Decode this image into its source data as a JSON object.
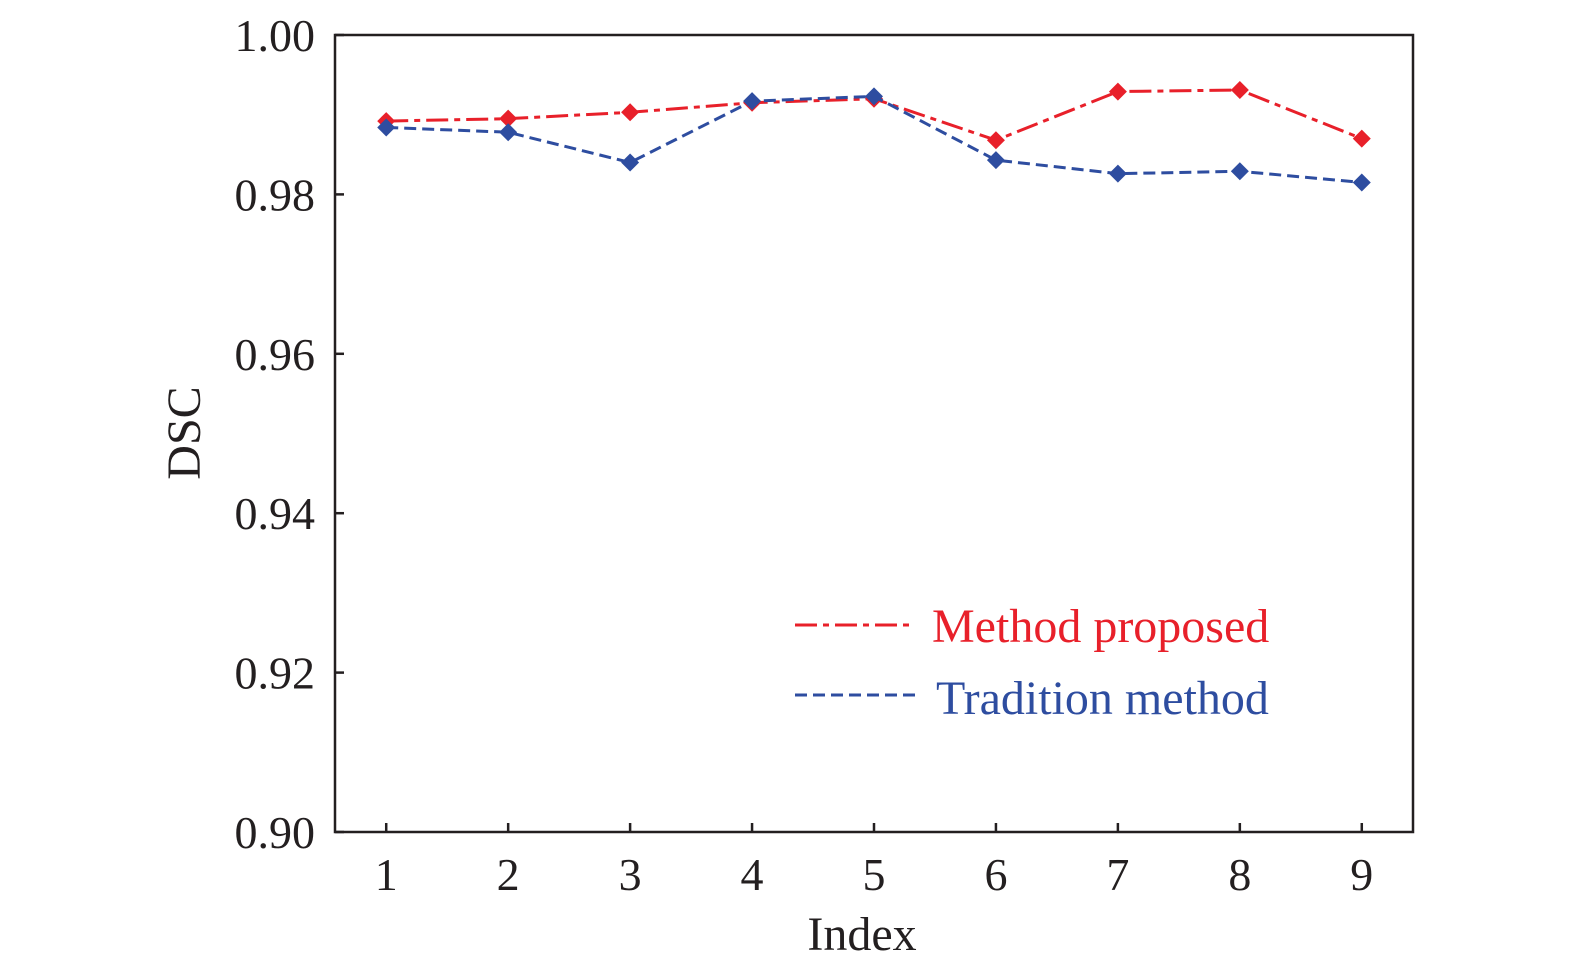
{
  "chart_data": {
    "type": "line",
    "title": "",
    "xlabel": "Index",
    "ylabel": "DSC",
    "x": [
      1,
      2,
      3,
      4,
      5,
      6,
      7,
      8,
      9
    ],
    "x_tick_labels": [
      "1",
      "2",
      "3",
      "4",
      "5",
      "6",
      "7",
      "8",
      "9"
    ],
    "y_tick_labels": [
      "0.90",
      "0.92",
      "0.94",
      "0.96",
      "0.98",
      "1.00"
    ],
    "y_ticks": [
      0.9,
      0.92,
      0.94,
      0.96,
      0.98,
      1.0
    ],
    "xlim": [
      0.58,
      9.42
    ],
    "ylim": [
      0.9,
      1.0
    ],
    "grid": false,
    "legend_position": "bottom-right",
    "series": [
      {
        "name": "Method proposed",
        "color": "#e8202a",
        "line_style": "dash-dot",
        "marker": "diamond",
        "values": [
          0.9892,
          0.9895,
          0.9903,
          0.9915,
          0.992,
          0.9868,
          0.9929,
          0.9931,
          0.987
        ]
      },
      {
        "name": "Tradition method",
        "color": "#2e4da0",
        "line_style": "dashed",
        "marker": "diamond",
        "values": [
          0.9884,
          0.9878,
          0.984,
          0.9917,
          0.9923,
          0.9843,
          0.9826,
          0.9829,
          0.9815
        ]
      }
    ]
  }
}
